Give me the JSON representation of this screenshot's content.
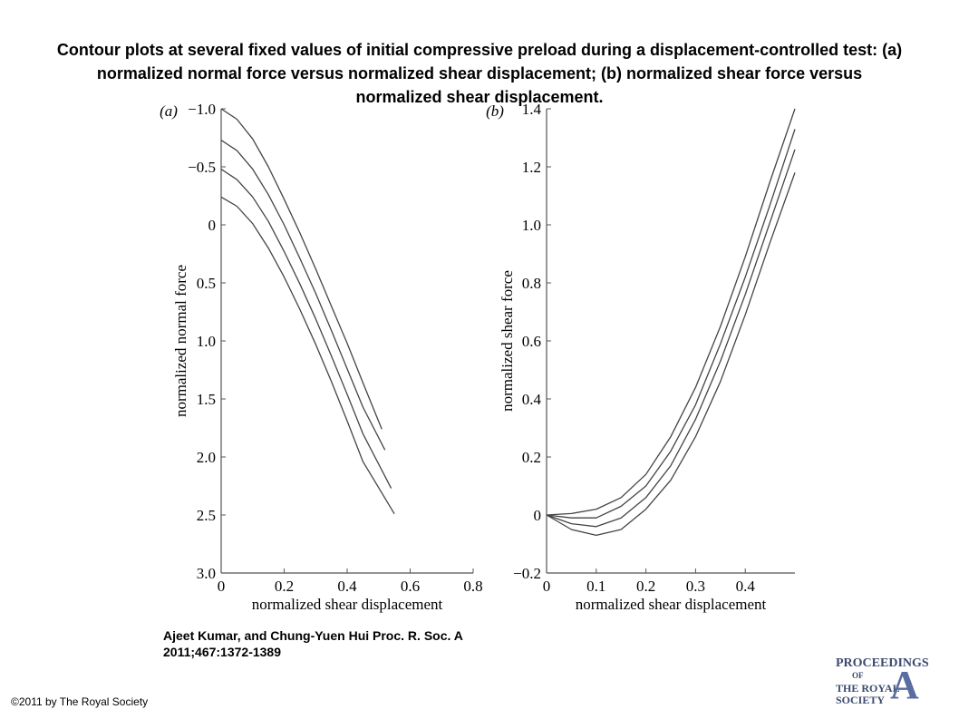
{
  "title": "Contour plots at several fixed values of initial compressive preload during a displacement-controlled test: (a) normalized normal force versus normalized shear displacement; (b) normalized shear force versus normalized shear displacement.",
  "citation": "Ajeet Kumar, and Chung-Yuen Hui Proc. R. Soc. A 2011;467:1372-1389",
  "copyright": "©2011 by The Royal Society",
  "logo": {
    "line1": "PROCEEDINGS",
    "line2": "OF",
    "line3": "THE ROYAL",
    "line4": "SOCIETY",
    "letter": "A"
  },
  "colors": {
    "line": "#444444",
    "axis": "#555555",
    "logo": "#3c4a6e"
  },
  "chart_data": [
    {
      "type": "line",
      "panel_label": "(a)",
      "xlabel": "normalized shear displacement",
      "ylabel": "normalized normal force",
      "xlim": [
        0,
        0.8
      ],
      "ylim": [
        -1.0,
        3.0
      ],
      "y_inverted": true,
      "xticks": [
        0,
        0.2,
        0.4,
        0.6,
        0.8
      ],
      "xtick_labels": [
        "0",
        "0.2",
        "0.4",
        "0.6",
        "0.8"
      ],
      "yticks": [
        -1.0,
        -0.5,
        0,
        0.5,
        1.0,
        1.5,
        2.0,
        2.5,
        3.0
      ],
      "ytick_labels": [
        "−1.0",
        "−0.5",
        "0",
        "0.5",
        "1.0",
        "1.5",
        "2.0",
        "2.5",
        "3.0"
      ],
      "series": [
        {
          "x": [
            0,
            0.05,
            0.1,
            0.15,
            0.2,
            0.25,
            0.3,
            0.35,
            0.4,
            0.45,
            0.51
          ],
          "y": [
            -1.0,
            -0.91,
            -0.74,
            -0.5,
            -0.22,
            0.07,
            0.38,
            0.7,
            1.02,
            1.36,
            1.76
          ]
        },
        {
          "x": [
            0,
            0.05,
            0.1,
            0.15,
            0.2,
            0.25,
            0.3,
            0.35,
            0.4,
            0.45,
            0.52
          ],
          "y": [
            -0.73,
            -0.64,
            -0.48,
            -0.26,
            0.0,
            0.29,
            0.59,
            0.91,
            1.24,
            1.57,
            1.94
          ]
        },
        {
          "x": [
            0,
            0.05,
            0.1,
            0.15,
            0.2,
            0.25,
            0.3,
            0.35,
            0.4,
            0.45,
            0.54
          ],
          "y": [
            -0.48,
            -0.39,
            -0.24,
            -0.03,
            0.23,
            0.51,
            0.81,
            1.13,
            1.46,
            1.8,
            2.27
          ]
        },
        {
          "x": [
            0,
            0.05,
            0.1,
            0.15,
            0.2,
            0.25,
            0.3,
            0.35,
            0.4,
            0.45,
            0.55
          ],
          "y": [
            -0.24,
            -0.16,
            -0.01,
            0.2,
            0.45,
            0.73,
            1.03,
            1.35,
            1.69,
            2.04,
            2.49
          ]
        }
      ]
    },
    {
      "type": "line",
      "panel_label": "(b)",
      "xlabel": "normalized shear displacement",
      "ylabel": "normalized shear force",
      "xlim": [
        0,
        0.5
      ],
      "ylim": [
        -0.2,
        1.4
      ],
      "xticks": [
        0,
        0.1,
        0.2,
        0.3,
        0.4
      ],
      "xtick_labels": [
        "0",
        "0.1",
        "0.2",
        "0.3",
        "0.4"
      ],
      "yticks": [
        -0.2,
        0,
        0.2,
        0.4,
        0.6,
        0.8,
        1.0,
        1.2,
        1.4
      ],
      "ytick_labels": [
        "−0.2",
        "0",
        "0.2",
        "0.4",
        "0.6",
        "0.8",
        "1.0",
        "1.2",
        "1.4"
      ],
      "series": [
        {
          "x": [
            0,
            0.05,
            0.1,
            0.15,
            0.2,
            0.25,
            0.3,
            0.35,
            0.4,
            0.45,
            0.5
          ],
          "y": [
            0,
            0.005,
            0.02,
            0.06,
            0.14,
            0.27,
            0.44,
            0.65,
            0.89,
            1.15,
            1.4
          ]
        },
        {
          "x": [
            0,
            0.05,
            0.1,
            0.15,
            0.2,
            0.25,
            0.3,
            0.35,
            0.4,
            0.45,
            0.5
          ],
          "y": [
            0,
            -0.01,
            -0.01,
            0.03,
            0.1,
            0.22,
            0.38,
            0.59,
            0.82,
            1.07,
            1.33
          ]
        },
        {
          "x": [
            0,
            0.05,
            0.1,
            0.15,
            0.2,
            0.25,
            0.3,
            0.35,
            0.4,
            0.45,
            0.5
          ],
          "y": [
            0,
            -0.03,
            -0.04,
            -0.01,
            0.06,
            0.17,
            0.33,
            0.53,
            0.76,
            1.01,
            1.26
          ]
        },
        {
          "x": [
            0,
            0.05,
            0.1,
            0.15,
            0.2,
            0.25,
            0.3,
            0.35,
            0.4,
            0.45,
            0.5
          ],
          "y": [
            0,
            -0.05,
            -0.07,
            -0.05,
            0.02,
            0.12,
            0.27,
            0.46,
            0.69,
            0.94,
            1.18
          ]
        }
      ]
    }
  ]
}
